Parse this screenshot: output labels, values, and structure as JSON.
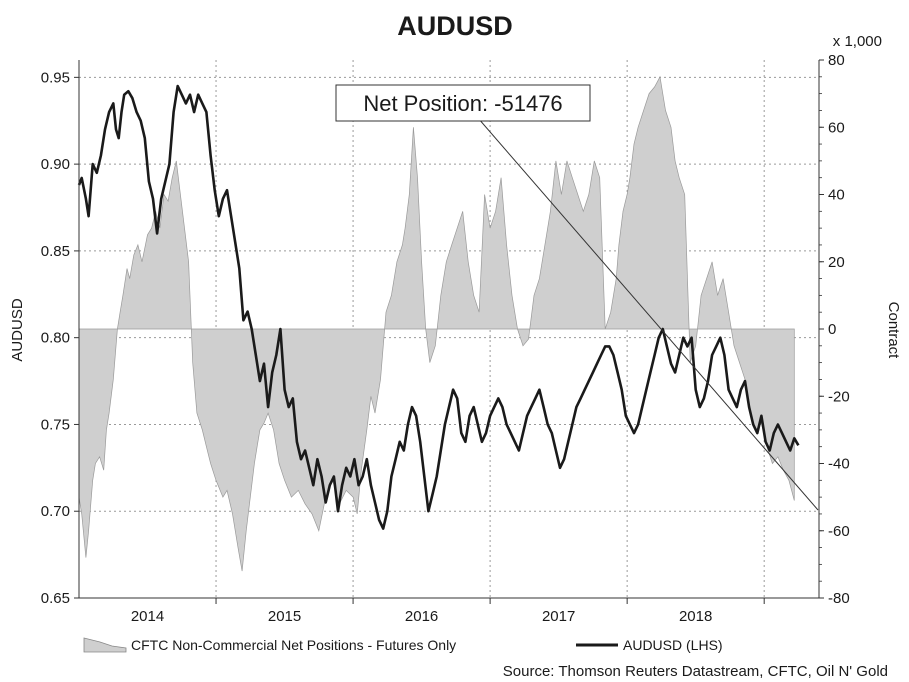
{
  "chart_data": {
    "type": "line",
    "title": "AUDUSD",
    "ylabel": "AUDUSD",
    "y2label": "Contract",
    "y2_multiplier_label": "x 1,000",
    "ylim": [
      0.65,
      0.96
    ],
    "y2lim": [
      -80,
      80
    ],
    "yticks": [
      "0.65",
      "0.70",
      "0.75",
      "0.80",
      "0.85",
      "0.90",
      "0.95"
    ],
    "y2ticks": [
      "-80",
      "-60",
      "-40",
      "-20",
      "0",
      "20",
      "40",
      "60",
      "80"
    ],
    "year_labels": [
      "2014",
      "2015",
      "2016",
      "2017",
      "2018"
    ],
    "xlim": [
      2013.5,
      2018.9
    ],
    "grid": true,
    "legend_position": "bottom",
    "annotation": "Net Position: -51476",
    "source": "Source: Thomson Reuters Datastream, CFTC, Oil N' Gold",
    "colors": {
      "area": "#cfcfcf",
      "line": "#1a1a1a",
      "trend": "#333333",
      "grid": "#9a9a9a"
    },
    "series": [
      {
        "name": "CFTC Non-Commercial Net Positions - Futures Only",
        "axis": "right",
        "kind": "area",
        "x": [
          2013.5,
          2013.52,
          2013.55,
          2013.57,
          2013.6,
          2013.62,
          2013.65,
          2013.68,
          2013.7,
          2013.72,
          2013.75,
          2013.78,
          2013.8,
          2013.82,
          2013.85,
          2013.87,
          2013.9,
          2013.93,
          2013.96,
          2014.0,
          2014.03,
          2014.06,
          2014.09,
          2014.12,
          2014.15,
          2014.18,
          2014.21,
          2014.24,
          2014.27,
          2014.3,
          2014.33,
          2014.36,
          2014.4,
          2014.43,
          2014.46,
          2014.5,
          2014.55,
          2014.58,
          2014.62,
          2014.66,
          2014.69,
          2014.72,
          2014.75,
          2014.78,
          2014.8,
          2014.82,
          2014.85,
          2014.88,
          2014.92,
          2014.96,
          2015.0,
          2015.05,
          2015.1,
          2015.15,
          2015.2,
          2015.25,
          2015.3,
          2015.35,
          2015.4,
          2015.45,
          2015.5,
          2015.53,
          2015.56,
          2015.6,
          2015.63,
          2015.66,
          2015.7,
          2015.74,
          2015.78,
          2015.82,
          2015.86,
          2015.88,
          2015.91,
          2015.94,
          2015.97,
          2016.0,
          2016.03,
          2016.06,
          2016.1,
          2016.14,
          2016.18,
          2016.22,
          2016.26,
          2016.3,
          2016.34,
          2016.38,
          2016.42,
          2016.46,
          2016.5,
          2016.54,
          2016.58,
          2016.62,
          2016.66,
          2016.7,
          2016.74,
          2016.78,
          2016.82,
          2016.86,
          2016.9,
          2016.94,
          2016.98,
          2017.02,
          2017.06,
          2017.1,
          2017.14,
          2017.18,
          2017.22,
          2017.26,
          2017.3,
          2017.34,
          2017.38,
          2017.42,
          2017.44,
          2017.47,
          2017.5,
          2017.52,
          2017.55,
          2017.58,
          2017.62,
          2017.66,
          2017.7,
          2017.74,
          2017.78,
          2017.82,
          2017.85,
          2017.88,
          2017.92,
          2017.96,
          2018.0,
          2018.04,
          2018.08,
          2018.12,
          2018.16,
          2018.2,
          2018.24,
          2018.28,
          2018.32,
          2018.36,
          2018.4,
          2018.44,
          2018.48,
          2018.52,
          2018.56,
          2018.6,
          2018.64,
          2018.68,
          2018.72
        ],
        "values": [
          -50,
          -55,
          -68,
          -60,
          -45,
          -40,
          -38,
          -42,
          -30,
          -25,
          -15,
          0,
          5,
          10,
          18,
          15,
          22,
          25,
          20,
          28,
          30,
          35,
          30,
          40,
          38,
          45,
          50,
          40,
          30,
          20,
          -10,
          -25,
          -30,
          -35,
          -40,
          -45,
          -50,
          -48,
          -55,
          -65,
          -72,
          -60,
          -50,
          -40,
          -35,
          -30,
          -28,
          -25,
          -30,
          -40,
          -45,
          -50,
          -48,
          -52,
          -55,
          -60,
          -50,
          -45,
          -52,
          -48,
          -50,
          -55,
          -42,
          -30,
          -20,
          -25,
          -15,
          5,
          10,
          20,
          25,
          30,
          40,
          60,
          45,
          20,
          0,
          -10,
          -5,
          10,
          20,
          25,
          30,
          35,
          20,
          10,
          5,
          40,
          30,
          35,
          45,
          25,
          10,
          0,
          -5,
          -3,
          10,
          15,
          25,
          35,
          50,
          40,
          50,
          45,
          40,
          35,
          40,
          50,
          45,
          0,
          5,
          15,
          25,
          35,
          40,
          45,
          55,
          60,
          65,
          70,
          72,
          75,
          65,
          60,
          50,
          45,
          40,
          -10,
          -5,
          10,
          15,
          20,
          10,
          15,
          5,
          -5,
          -10,
          -15,
          -25,
          -30,
          -28,
          -35,
          -40,
          -38,
          -42,
          -45,
          -51
        ]
      },
      {
        "name": "AUDUSD (LHS)",
        "axis": "left",
        "kind": "line",
        "x": [
          2013.5,
          2013.52,
          2013.55,
          2013.57,
          2013.6,
          2013.63,
          2013.66,
          2013.69,
          2013.72,
          2013.75,
          2013.77,
          2013.79,
          2013.81,
          2013.83,
          2013.86,
          2013.89,
          2013.92,
          2013.95,
          2013.98,
          2014.01,
          2014.04,
          2014.07,
          2014.1,
          2014.13,
          2014.16,
          2014.19,
          2014.22,
          2014.25,
          2014.28,
          2014.31,
          2014.34,
          2014.37,
          2014.4,
          2014.43,
          2014.46,
          2014.49,
          2014.52,
          2014.55,
          2014.58,
          2014.61,
          2014.64,
          2014.67,
          2014.7,
          2014.73,
          2014.76,
          2014.79,
          2014.82,
          2014.85,
          2014.88,
          2014.91,
          2014.94,
          2014.97,
          2015.0,
          2015.03,
          2015.06,
          2015.09,
          2015.12,
          2015.15,
          2015.18,
          2015.21,
          2015.24,
          2015.27,
          2015.3,
          2015.33,
          2015.36,
          2015.39,
          2015.42,
          2015.45,
          2015.48,
          2015.51,
          2015.54,
          2015.57,
          2015.6,
          2015.63,
          2015.66,
          2015.69,
          2015.72,
          2015.75,
          2015.78,
          2015.81,
          2015.84,
          2015.87,
          2015.9,
          2015.93,
          2015.96,
          2015.99,
          2016.02,
          2016.05,
          2016.08,
          2016.11,
          2016.14,
          2016.17,
          2016.2,
          2016.23,
          2016.26,
          2016.29,
          2016.32,
          2016.35,
          2016.38,
          2016.41,
          2016.44,
          2016.47,
          2016.5,
          2016.53,
          2016.56,
          2016.59,
          2016.62,
          2016.65,
          2016.68,
          2016.71,
          2016.74,
          2016.77,
          2016.8,
          2016.83,
          2016.86,
          2016.89,
          2016.92,
          2016.95,
          2016.98,
          2017.01,
          2017.04,
          2017.07,
          2017.1,
          2017.13,
          2017.16,
          2017.19,
          2017.22,
          2017.25,
          2017.28,
          2017.31,
          2017.34,
          2017.37,
          2017.4,
          2017.43,
          2017.46,
          2017.49,
          2017.52,
          2017.55,
          2017.58,
          2017.61,
          2017.64,
          2017.67,
          2017.7,
          2017.73,
          2017.76,
          2017.79,
          2017.82,
          2017.85,
          2017.88,
          2017.91,
          2017.94,
          2017.97,
          2018.0,
          2018.03,
          2018.06,
          2018.09,
          2018.12,
          2018.15,
          2018.18,
          2018.21,
          2018.24,
          2018.27,
          2018.3,
          2018.33,
          2018.36,
          2018.39,
          2018.42,
          2018.45,
          2018.48,
          2018.51,
          2018.54,
          2018.57,
          2018.6,
          2018.63,
          2018.66,
          2018.69,
          2018.72,
          2018.75
        ],
        "values": [
          0.888,
          0.892,
          0.88,
          0.87,
          0.9,
          0.895,
          0.905,
          0.92,
          0.93,
          0.935,
          0.92,
          0.915,
          0.93,
          0.94,
          0.942,
          0.938,
          0.93,
          0.925,
          0.915,
          0.89,
          0.88,
          0.86,
          0.88,
          0.89,
          0.9,
          0.93,
          0.945,
          0.94,
          0.935,
          0.94,
          0.93,
          0.94,
          0.935,
          0.93,
          0.905,
          0.885,
          0.87,
          0.88,
          0.885,
          0.87,
          0.855,
          0.84,
          0.81,
          0.815,
          0.805,
          0.79,
          0.775,
          0.785,
          0.76,
          0.78,
          0.79,
          0.805,
          0.77,
          0.76,
          0.765,
          0.74,
          0.73,
          0.735,
          0.725,
          0.715,
          0.73,
          0.72,
          0.705,
          0.715,
          0.72,
          0.7,
          0.715,
          0.725,
          0.72,
          0.73,
          0.715,
          0.72,
          0.73,
          0.715,
          0.705,
          0.695,
          0.69,
          0.7,
          0.72,
          0.73,
          0.74,
          0.735,
          0.75,
          0.76,
          0.755,
          0.74,
          0.72,
          0.7,
          0.71,
          0.72,
          0.735,
          0.75,
          0.76,
          0.77,
          0.765,
          0.745,
          0.74,
          0.755,
          0.76,
          0.75,
          0.74,
          0.745,
          0.755,
          0.76,
          0.765,
          0.76,
          0.75,
          0.745,
          0.74,
          0.735,
          0.745,
          0.755,
          0.76,
          0.765,
          0.77,
          0.76,
          0.75,
          0.745,
          0.735,
          0.725,
          0.73,
          0.74,
          0.75,
          0.76,
          0.765,
          0.77,
          0.775,
          0.78,
          0.785,
          0.79,
          0.795,
          0.795,
          0.79,
          0.78,
          0.77,
          0.755,
          0.75,
          0.745,
          0.75,
          0.76,
          0.77,
          0.78,
          0.79,
          0.8,
          0.805,
          0.795,
          0.785,
          0.78,
          0.79,
          0.8,
          0.795,
          0.8,
          0.77,
          0.76,
          0.765,
          0.775,
          0.79,
          0.795,
          0.8,
          0.79,
          0.77,
          0.765,
          0.76,
          0.77,
          0.775,
          0.76,
          0.75,
          0.745,
          0.755,
          0.74,
          0.735,
          0.745,
          0.75,
          0.745,
          0.74,
          0.735,
          0.742,
          0.738
        ]
      }
    ]
  }
}
